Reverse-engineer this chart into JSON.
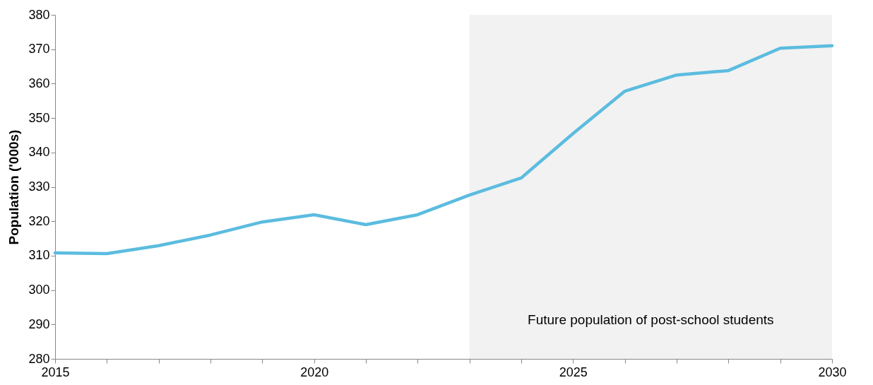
{
  "chart_data": {
    "type": "line",
    "ylabel": "Population ('000s)",
    "x": [
      2015,
      2016,
      2017,
      2018,
      2019,
      2020,
      2021,
      2022,
      2023,
      2024,
      2025,
      2026,
      2027,
      2028,
      2029,
      2030
    ],
    "series": [
      {
        "color": "#5bbcdf",
        "values": [
          310.8,
          310.6,
          312.9,
          316,
          319.8,
          321.9,
          319,
          321.9,
          327.6,
          332.6,
          345.5,
          357.8,
          362.5,
          363.8,
          370.3,
          371
        ]
      }
    ],
    "xlim": [
      2015,
      2030
    ],
    "xticks": [
      2015,
      {
        "value": 2016,
        "label": null
      },
      {
        "value": 2017,
        "label": null
      },
      {
        "value": 2018,
        "label": null
      },
      {
        "value": 2019,
        "label": null
      },
      2020,
      {
        "value": 2021,
        "label": null
      },
      {
        "value": 2022,
        "label": null
      },
      {
        "value": 2023,
        "label": null
      },
      {
        "value": 2024,
        "label": null
      },
      2025,
      {
        "value": 2026,
        "label": null
      },
      {
        "value": 2027,
        "label": null
      },
      {
        "value": 2028,
        "label": null
      },
      {
        "value": 2029,
        "label": null
      },
      2030
    ],
    "ylim": [
      280,
      380
    ],
    "yticks": [
      280,
      290,
      300,
      310,
      320,
      330,
      340,
      350,
      360,
      370,
      380
    ],
    "bands": [
      {
        "axis": "x",
        "from": 2023,
        "to": 2030,
        "label": "Future population of post-school students",
        "color": "#f2f2f2"
      }
    ],
    "grid": false,
    "marker": "none",
    "line_style": "solid"
  }
}
